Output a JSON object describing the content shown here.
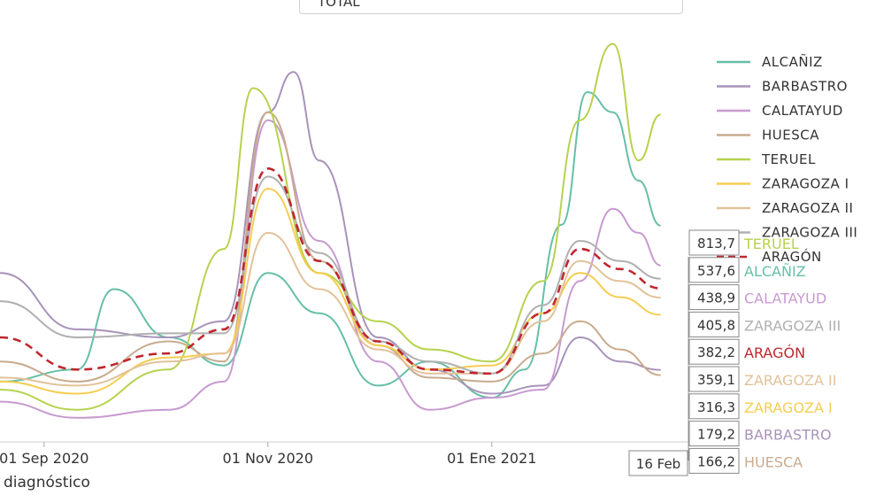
{
  "selector": {
    "value": "TOTAL"
  },
  "caption": "diagnóstico",
  "colors": {
    "ALCAÑIZ": "#66bfa6",
    "BARBASTRO": "#a893b9",
    "CALATAYUD": "#c79ad0",
    "HUESCA": "#c8ab8e",
    "TERUEL": "#b6d24e",
    "ZARAGOZA I": "#f5cd50",
    "ZARAGOZA II": "#e2c29a",
    "ZARAGOZA III": "#b0b0b0",
    "ARAGÓN": "#c0262d"
  },
  "chart_data": {
    "type": "line",
    "x_ticks": [
      "01 Sep 2020",
      "01 Nov 2020",
      "01 Ene 2021"
    ],
    "hover_date": "16 Feb",
    "legend": [
      "ALCAÑIZ",
      "BARBASTRO",
      "CALATAYUD",
      "HUESCA",
      "TERUEL",
      "ZARAGOZA I",
      "ZARAGOZA II",
      "ZARAGOZA III",
      "ARAGÓN"
    ],
    "ylim": [
      0,
      1000
    ],
    "series": [
      {
        "name": "ALCAÑIZ",
        "x": [
          "2020-08-20",
          "2020-09-10",
          "2020-09-20",
          "2020-10-05",
          "2020-10-20",
          "2020-11-01",
          "2020-11-15",
          "2020-12-01",
          "2020-12-15",
          "2021-01-01",
          "2021-01-10",
          "2021-01-20",
          "2021-01-27",
          "2021-02-03",
          "2021-02-10",
          "2021-02-16"
        ],
        "y": [
          150,
          180,
          380,
          260,
          190,
          420,
          320,
          140,
          200,
          110,
          180,
          540,
          870,
          820,
          650,
          538
        ]
      },
      {
        "name": "BARBASTRO",
        "x": [
          "2020-08-20",
          "2020-09-10",
          "2020-10-05",
          "2020-10-20",
          "2020-11-01",
          "2020-11-08",
          "2020-11-15",
          "2020-12-01",
          "2020-12-15",
          "2021-01-01",
          "2021-01-15",
          "2021-01-25",
          "2021-02-05",
          "2021-02-16"
        ],
        "y": [
          420,
          280,
          260,
          300,
          820,
          920,
          700,
          260,
          180,
          120,
          140,
          260,
          200,
          179
        ]
      },
      {
        "name": "CALATAYUD",
        "x": [
          "2020-08-20",
          "2020-09-10",
          "2020-10-05",
          "2020-10-20",
          "2020-11-01",
          "2020-11-15",
          "2020-12-01",
          "2020-12-15",
          "2021-01-01",
          "2021-01-15",
          "2021-01-25",
          "2021-02-03",
          "2021-02-10",
          "2021-02-16"
        ],
        "y": [
          100,
          60,
          80,
          150,
          800,
          500,
          200,
          80,
          110,
          130,
          400,
          580,
          520,
          439
        ]
      },
      {
        "name": "HUESCA",
        "x": [
          "2020-08-20",
          "2020-09-10",
          "2020-10-05",
          "2020-10-20",
          "2020-11-01",
          "2020-11-15",
          "2020-12-01",
          "2020-12-15",
          "2021-01-01",
          "2021-01-15",
          "2021-01-25",
          "2021-02-05",
          "2021-02-16"
        ],
        "y": [
          200,
          150,
          250,
          200,
          820,
          450,
          240,
          160,
          150,
          220,
          300,
          230,
          166
        ]
      },
      {
        "name": "TERUEL",
        "x": [
          "2020-08-20",
          "2020-09-10",
          "2020-10-05",
          "2020-10-20",
          "2020-10-28",
          "2020-11-15",
          "2020-12-01",
          "2020-12-15",
          "2021-01-01",
          "2021-01-15",
          "2021-01-25",
          "2021-02-03",
          "2021-02-10",
          "2021-02-16"
        ],
        "y": [
          130,
          80,
          180,
          480,
          880,
          420,
          300,
          230,
          200,
          400,
          800,
          990,
          700,
          814
        ]
      },
      {
        "name": "ZARAGOZA I",
        "x": [
          "2020-08-20",
          "2020-09-10",
          "2020-10-05",
          "2020-10-20",
          "2020-11-01",
          "2020-11-15",
          "2020-12-01",
          "2020-12-15",
          "2021-01-01",
          "2021-01-15",
          "2021-01-25",
          "2021-02-05",
          "2021-02-16"
        ],
        "y": [
          150,
          120,
          210,
          220,
          630,
          420,
          240,
          180,
          190,
          320,
          420,
          360,
          316
        ]
      },
      {
        "name": "ZARAGOZA II",
        "x": [
          "2020-08-20",
          "2020-09-10",
          "2020-10-05",
          "2020-10-20",
          "2020-11-01",
          "2020-11-15",
          "2020-12-01",
          "2020-12-15",
          "2021-01-01",
          "2021-01-15",
          "2021-01-25",
          "2021-02-05",
          "2021-02-16"
        ],
        "y": [
          160,
          140,
          200,
          220,
          520,
          380,
          230,
          170,
          170,
          300,
          450,
          400,
          359
        ]
      },
      {
        "name": "ZARAGOZA III",
        "x": [
          "2020-08-20",
          "2020-09-10",
          "2020-10-05",
          "2020-10-20",
          "2020-11-01",
          "2020-11-15",
          "2020-12-01",
          "2020-12-15",
          "2021-01-01",
          "2021-01-15",
          "2021-01-25",
          "2021-02-05",
          "2021-02-16"
        ],
        "y": [
          350,
          260,
          270,
          270,
          660,
          470,
          250,
          200,
          170,
          340,
          500,
          450,
          406
        ]
      },
      {
        "name": "ARAGÓN",
        "x": [
          "2020-08-20",
          "2020-09-10",
          "2020-10-05",
          "2020-10-20",
          "2020-11-01",
          "2020-11-15",
          "2020-12-01",
          "2020-12-15",
          "2021-01-01",
          "2021-01-15",
          "2021-01-25",
          "2021-02-05",
          "2021-02-16"
        ],
        "y": [
          260,
          180,
          220,
          280,
          680,
          450,
          250,
          180,
          170,
          320,
          480,
          430,
          382
        ]
      }
    ],
    "end_labels": [
      {
        "value": "813,7",
        "name": "TERUEL"
      },
      {
        "value": "537,6",
        "name": "ALCAÑIZ"
      },
      {
        "value": "438,9",
        "name": "CALATAYUD"
      },
      {
        "value": "405,8",
        "name": "ZARAGOZA III"
      },
      {
        "value": "382,2",
        "name": "ARAGÓN"
      },
      {
        "value": "359,1",
        "name": "ZARAGOZA II"
      },
      {
        "value": "316,3",
        "name": "ZARAGOZA I"
      },
      {
        "value": "179,2",
        "name": "BARBASTRO"
      },
      {
        "value": "166,2",
        "name": "HUESCA"
      }
    ]
  }
}
